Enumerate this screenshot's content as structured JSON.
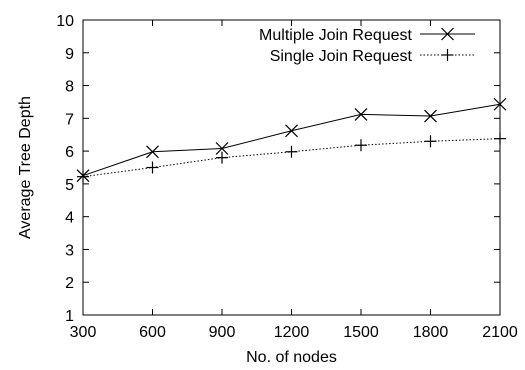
{
  "chart_data": {
    "type": "line",
    "title": "",
    "xlabel": "No. of nodes",
    "ylabel": "Average Tree Depth",
    "x": [
      300,
      600,
      900,
      1200,
      1500,
      1800,
      2100
    ],
    "xlim": [
      300,
      2100
    ],
    "ylim": [
      1,
      10
    ],
    "xticks": [
      "300",
      "600",
      "900",
      "1200",
      "1500",
      "1800",
      "2100"
    ],
    "yticks": [
      "1",
      "2",
      "3",
      "4",
      "5",
      "6",
      "7",
      "8",
      "9",
      "10"
    ],
    "grid": false,
    "legend_position": "top-right",
    "series": [
      {
        "name": "Multiple Join Request",
        "marker": "x",
        "line_style": "solid",
        "color": "#000000",
        "values": [
          5.25,
          5.98,
          6.08,
          6.62,
          7.12,
          7.07,
          7.43
        ]
      },
      {
        "name": "Single Join Request",
        "marker": "plus",
        "line_style": "dotted",
        "color": "#000000",
        "values": [
          5.22,
          5.5,
          5.8,
          5.98,
          6.18,
          6.3,
          6.38
        ]
      }
    ]
  }
}
